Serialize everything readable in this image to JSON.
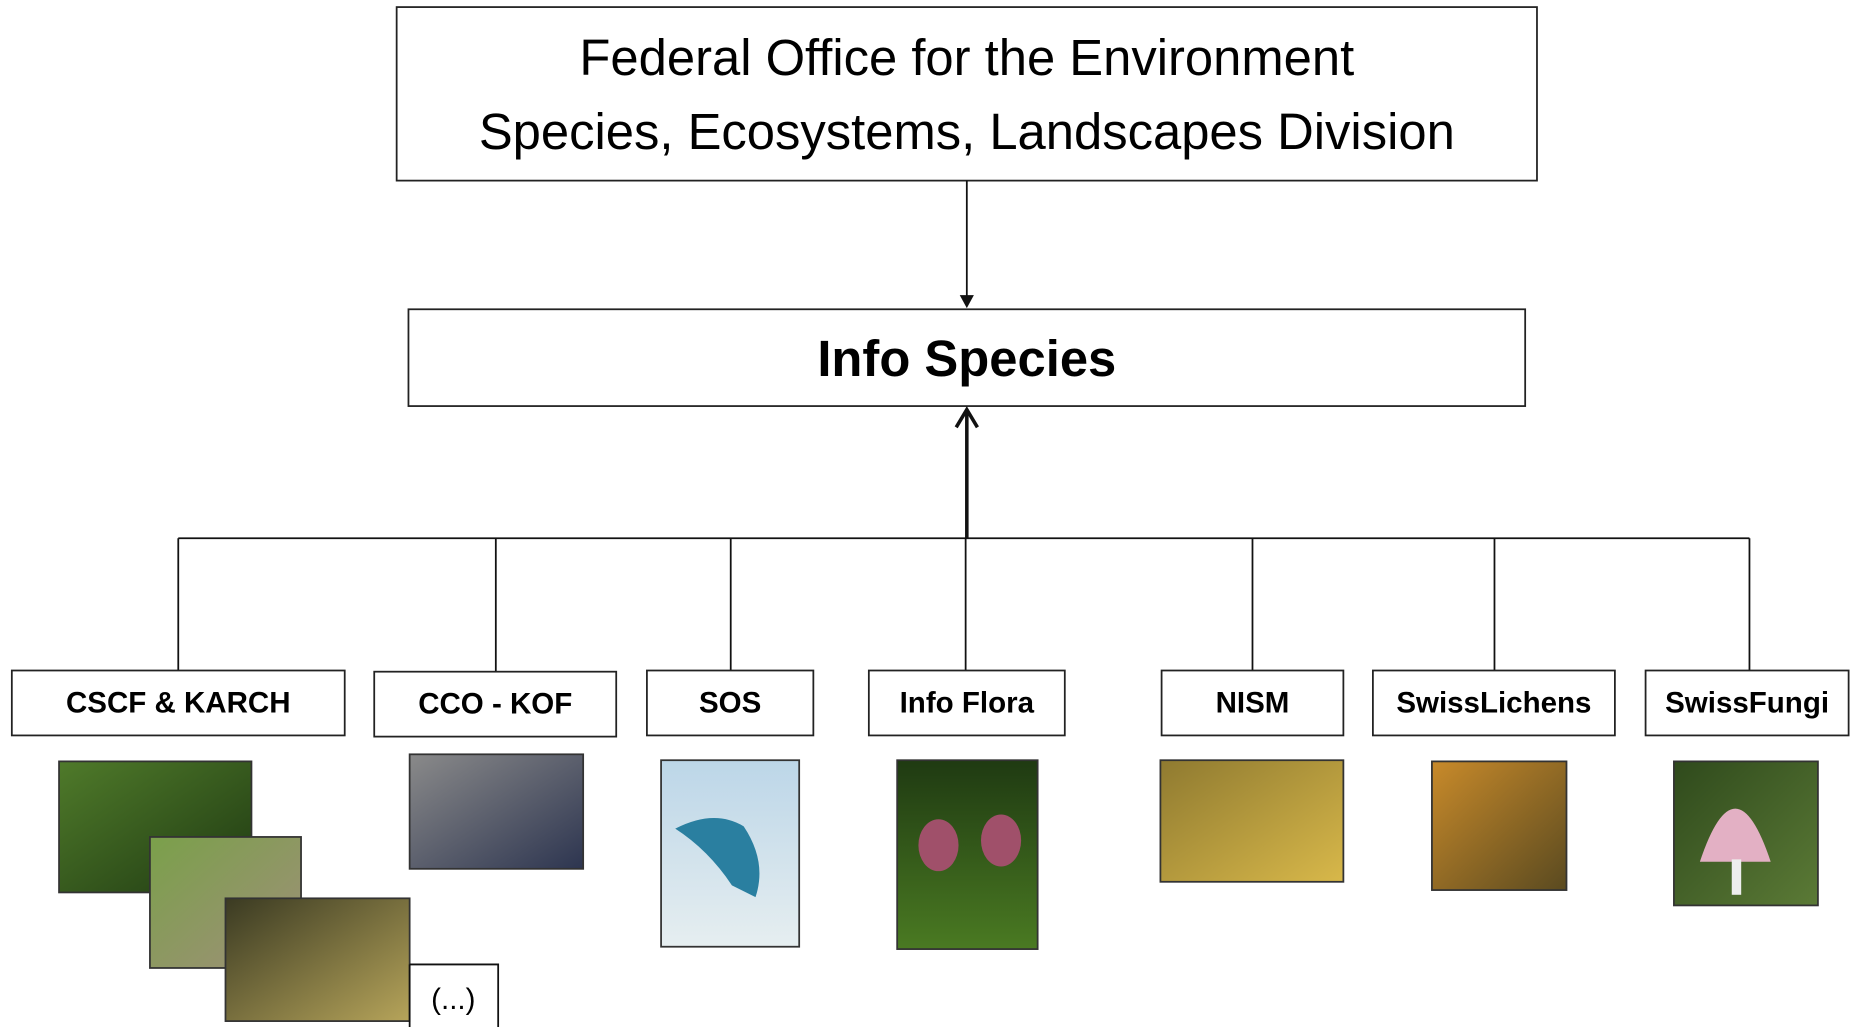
{
  "header": {
    "lines": [
      "Federal Office for the Environment",
      "Species, Ecosystems, Landscapes Division"
    ]
  },
  "center": {
    "label": "Info Species"
  },
  "nodes": [
    {
      "label": "CSCF & KARCH"
    },
    {
      "label": "CCO - KOF"
    },
    {
      "label": "SOS"
    },
    {
      "label": "Info Flora"
    },
    {
      "label": "NISM"
    },
    {
      "label": "SwissLichens"
    },
    {
      "label": "SwissFungi"
    }
  ],
  "more": {
    "label": "(...)"
  }
}
